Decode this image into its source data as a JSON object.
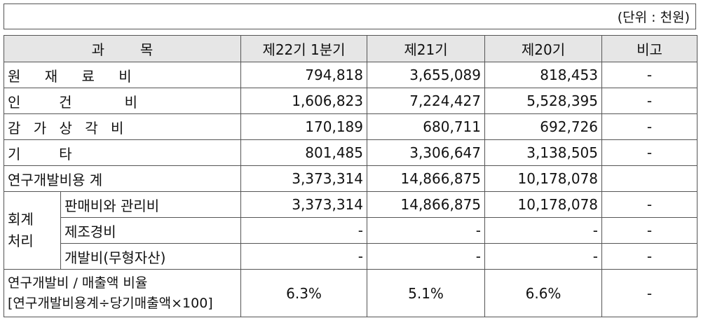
{
  "unit_note": "(단위 : 천원)",
  "headers": {
    "subject": "과        목",
    "col1": "제22기 1분기",
    "col2": "제21기",
    "col3": "제20기",
    "note": "비고"
  },
  "rows": {
    "raw_materials": {
      "label": "원 재 료 비",
      "v1": "794,818",
      "v2": "3,655,089",
      "v3": "818,453",
      "note": "-"
    },
    "labor": {
      "label": "인  건   비",
      "v1": "1,606,823",
      "v2": "7,224,427",
      "v3": "5,528,395",
      "note": "-"
    },
    "depreciation": {
      "label": "감 가 상 각 비",
      "v1": "170,189",
      "v2": "680,711",
      "v3": "692,726",
      "note": "-"
    },
    "other": {
      "label": "기  타",
      "v1": "801,485",
      "v2": "3,306,647",
      "v3": "3,138,505",
      "note": "-"
    },
    "rd_total": {
      "label": "연구개발비용 계",
      "v1": "3,373,314",
      "v2": "14,866,875",
      "v3": "10,178,078",
      "note": ""
    }
  },
  "accounting": {
    "group_label_1": "회계",
    "group_label_2": "처리",
    "sga": {
      "label": "판매비와 관리비",
      "v1": "3,373,314",
      "v2": "14,866,875",
      "v3": "10,178,078",
      "note": "-"
    },
    "manufacturing": {
      "label": "제조경비",
      "v1": "-",
      "v2": "-",
      "v3": "-",
      "note": "-"
    },
    "intangible": {
      "label": "개발비(무형자산)",
      "v1": "-",
      "v2": "-",
      "v3": "-",
      "note": "-"
    }
  },
  "ratio": {
    "label_line1": "연구개발비 / 매출액 비율",
    "label_line2": "[연구개발비용계÷당기매출액×100]",
    "v1": "6.3%",
    "v2": "5.1%",
    "v3": "6.6%",
    "note": "-"
  }
}
